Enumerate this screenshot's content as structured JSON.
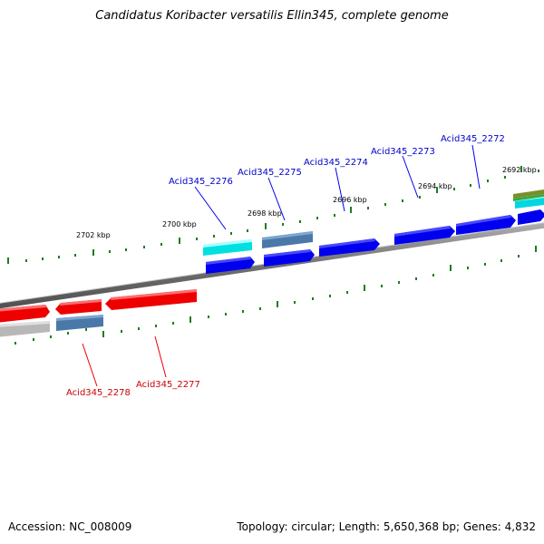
{
  "title": "Candidatus Koribacter versatilis Ellin345, complete genome",
  "footer": {
    "accession": "Accession: NC_008009",
    "summary": "Topology: circular; Length: 5,650,368 bp; Genes: 4,832"
  },
  "colors": {
    "forward_gene": "#0000ee",
    "reverse_gene": "#ee0000",
    "rna_gene": "#00e0e0",
    "steel_feature": "#4a78a8",
    "grey_feature": "#b8b8b8",
    "olive_feature": "#7a8f2a",
    "backbone": "#808080",
    "tick": "#1e7d1e",
    "forward_label": "#0000cc",
    "reverse_label": "#cc0000"
  },
  "kbp_labels": [
    "2702 kbp",
    "2700 kbp",
    "2698 kbp",
    "2696 kbp",
    "2694 kbp",
    "2692 kbp"
  ],
  "gene_labels": {
    "forward": [
      "Acid345_2276",
      "Acid345_2275",
      "Acid345_2274",
      "Acid345_2273",
      "Acid345_2272"
    ],
    "reverse": [
      "Acid345_2278",
      "Acid345_2277"
    ]
  }
}
